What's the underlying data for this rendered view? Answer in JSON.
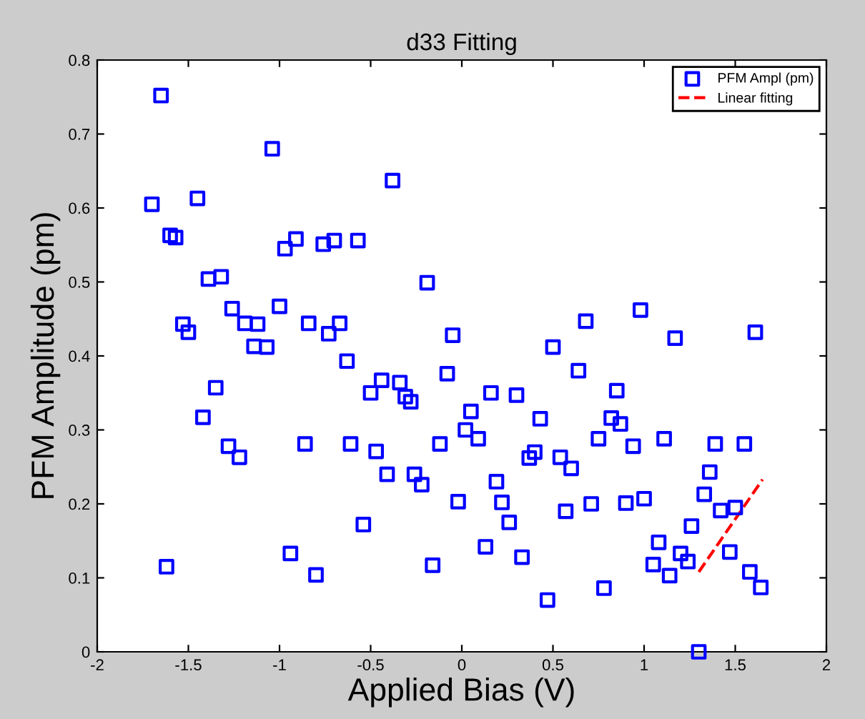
{
  "chart_data": {
    "type": "scatter",
    "title": "d33 Fitting",
    "xlabel": "Applied Bias (V)",
    "ylabel": "PFM Amplitude (pm)",
    "xlim": [
      -2,
      2
    ],
    "ylim": [
      0,
      0.8
    ],
    "xticks": [
      -2,
      -1.5,
      -1,
      -0.5,
      0,
      0.5,
      1,
      1.5,
      2
    ],
    "yticks": [
      0,
      0.1,
      0.2,
      0.3,
      0.4,
      0.5,
      0.6,
      0.7,
      0.8
    ],
    "grid": false,
    "legend": "top right",
    "series": [
      {
        "name": "PFM Ampl (pm)",
        "color": "#0000ff",
        "marker": "square",
        "x": [
          -1.7,
          -1.65,
          -1.62,
          -1.6,
          -1.57,
          -1.53,
          -1.5,
          -1.45,
          -1.42,
          -1.39,
          -1.35,
          -1.32,
          -1.28,
          -1.26,
          -1.22,
          -1.19,
          -1.14,
          -1.12,
          -1.07,
          -1.04,
          -1.0,
          -0.97,
          -0.94,
          -0.91,
          -0.86,
          -0.84,
          -0.8,
          -0.76,
          -0.73,
          -0.7,
          -0.67,
          -0.63,
          -0.61,
          -0.57,
          -0.54,
          -0.5,
          -0.47,
          -0.44,
          -0.41,
          -0.38,
          -0.34,
          -0.31,
          -0.28,
          -0.26,
          -0.22,
          -0.19,
          -0.16,
          -0.12,
          -0.08,
          -0.05,
          -0.02,
          0.02,
          0.05,
          0.09,
          0.13,
          0.16,
          0.19,
          0.22,
          0.26,
          0.3,
          0.33,
          0.37,
          0.4,
          0.43,
          0.47,
          0.5,
          0.54,
          0.57,
          0.6,
          0.64,
          0.68,
          0.71,
          0.75,
          0.78,
          0.82,
          0.85,
          0.87,
          0.9,
          0.94,
          0.98,
          1.0,
          1.05,
          1.08,
          1.11,
          1.14,
          1.17,
          1.2,
          1.24,
          1.26,
          1.3,
          1.33,
          1.36,
          1.39,
          1.42,
          1.47,
          1.5,
          1.55,
          1.58,
          1.61,
          1.64
        ],
        "values": [
          0.605,
          0.752,
          0.115,
          0.563,
          0.56,
          0.443,
          0.432,
          0.613,
          0.317,
          0.504,
          0.357,
          0.507,
          0.278,
          0.464,
          0.263,
          0.444,
          0.413,
          0.443,
          0.412,
          0.68,
          0.467,
          0.545,
          0.133,
          0.558,
          0.281,
          0.444,
          0.104,
          0.551,
          0.43,
          0.556,
          0.444,
          0.393,
          0.281,
          0.556,
          0.172,
          0.35,
          0.271,
          0.367,
          0.24,
          0.637,
          0.364,
          0.345,
          0.338,
          0.24,
          0.226,
          0.499,
          0.117,
          0.281,
          0.376,
          0.428,
          0.203,
          0.3,
          0.325,
          0.288,
          0.142,
          0.35,
          0.23,
          0.202,
          0.175,
          0.347,
          0.128,
          0.262,
          0.27,
          0.315,
          0.07,
          0.412,
          0.263,
          0.19,
          0.248,
          0.38,
          0.447,
          0.2,
          0.288,
          0.086,
          0.316,
          0.353,
          0.308,
          0.201,
          0.278,
          0.462,
          0.207,
          0.118,
          0.148,
          0.288,
          0.103,
          0.424,
          0.133,
          0.122,
          0.17,
          0.0,
          0.213,
          0.243,
          0.281,
          0.191,
          0.135,
          0.195,
          0.281,
          0.108,
          0.432,
          0.087
        ]
      },
      {
        "name": "Linear fitting",
        "type": "line",
        "color": "#ff0000",
        "line_style": "dashed",
        "marker": "none",
        "x": [
          1.3,
          1.65
        ],
        "values": [
          0.108,
          0.233
        ]
      }
    ]
  }
}
